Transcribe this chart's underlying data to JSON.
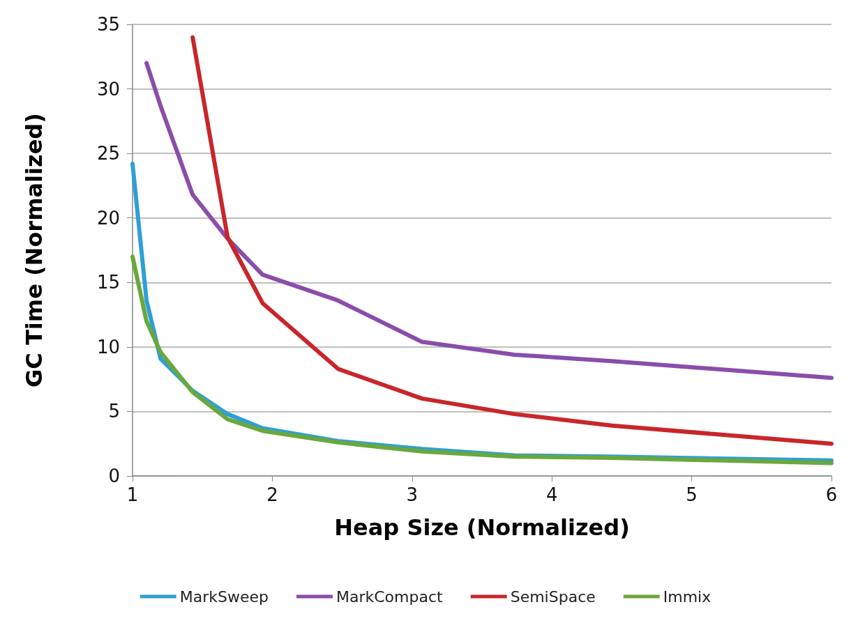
{
  "chart_data": {
    "type": "line",
    "xlabel": "Heap Size (Normalized)",
    "ylabel": "GC Time (Normalized)",
    "x": [
      1,
      1.1,
      1.2,
      1.43,
      1.68,
      1.93,
      2.47,
      3.07,
      3.73,
      4.43,
      6
    ],
    "series": [
      {
        "name": "MarkSweep",
        "color": "#2e9fd8",
        "values": [
          24.2,
          13.6,
          9.1,
          6.6,
          4.8,
          3.7,
          2.7,
          2.1,
          1.6,
          1.5,
          1.2
        ]
      },
      {
        "name": "MarkCompact",
        "color": "#8a4dab",
        "values": [
          null,
          32,
          28.7,
          21.8,
          18.4,
          15.6,
          13.6,
          10.4,
          9.4,
          8.9,
          7.6
        ]
      },
      {
        "name": "SemiSpace",
        "color": "#c8262b",
        "values": [
          null,
          null,
          null,
          34,
          18.5,
          13.4,
          8.3,
          6.0,
          4.8,
          3.9,
          2.5
        ]
      },
      {
        "name": "Immix",
        "color": "#6aa83c",
        "values": [
          17,
          12,
          9.6,
          6.5,
          4.4,
          3.5,
          2.6,
          1.9,
          1.5,
          1.4,
          1.0
        ]
      }
    ],
    "xlim": [
      1,
      6
    ],
    "xticks": [
      1,
      2,
      3,
      4,
      5,
      6
    ],
    "ylim": [
      0,
      35
    ],
    "yticks": [
      0,
      5,
      10,
      15,
      20,
      25,
      30,
      35
    ],
    "grid": "y",
    "legend": "bottom",
    "marker": "none",
    "line_style": "solid"
  }
}
